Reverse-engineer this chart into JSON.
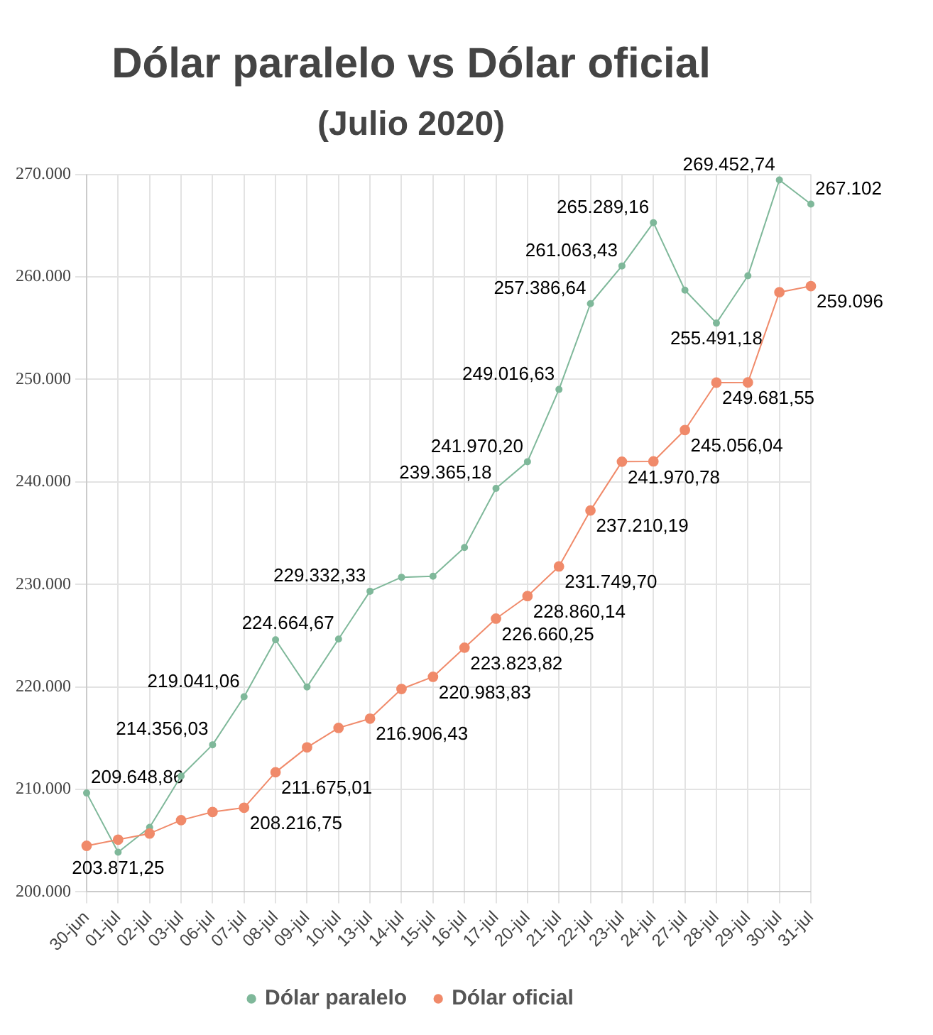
{
  "chart_data": {
    "type": "line",
    "title": "Dólar paralelo vs Dólar oficial",
    "subtitle": "(Julio 2020)",
    "categories": [
      "30-jun",
      "01-jul",
      "02-jul",
      "03-jul",
      "06-jul",
      "07-jul",
      "08-jul",
      "09-jul",
      "10-jul",
      "13-jul",
      "14-jul",
      "15-jul",
      "16-jul",
      "17-jul",
      "20-jul",
      "21-jul",
      "22-jul",
      "23-jul",
      "24-jul",
      "27-jul",
      "28-jul",
      "29-jul",
      "30-jul",
      "31-jul"
    ],
    "series": [
      {
        "name": "Dólar paralelo",
        "color": "#7fb89a",
        "values": [
          209648.86,
          203871.25,
          206300,
          211300,
          214356.03,
          219041.06,
          224600,
          220000,
          224664.67,
          229332.33,
          230700,
          230800,
          233600,
          239365.18,
          241970.2,
          249016.63,
          257386.64,
          261063.43,
          265289.16,
          258700,
          255491.18,
          260100,
          269452.74,
          267102
        ],
        "value_labels": [
          "209.648,86",
          "203.871,25",
          null,
          null,
          "214.356,03",
          "219.041,06",
          null,
          null,
          "224.664,67",
          "229.332,33",
          null,
          null,
          null,
          "239.365,18",
          "241.970,20",
          "249.016,63",
          "257.386,64",
          "261.063,43",
          "265.289,16",
          null,
          "255.491,18",
          null,
          "269.452,74",
          "267.102"
        ]
      },
      {
        "name": "Dólar oficial",
        "color": "#f08a6a",
        "values": [
          204500,
          205100,
          205700,
          207000,
          207800,
          208216.75,
          211675.01,
          214100,
          216000,
          216906.43,
          219800,
          220983.83,
          223823.82,
          226660.25,
          228860.14,
          231749.7,
          237210.19,
          241970.78,
          242000,
          245056.04,
          249681.55,
          249700,
          258500,
          259096
        ],
        "value_labels": [
          null,
          null,
          null,
          null,
          null,
          "208.216,75",
          "211.675,01",
          null,
          null,
          "216.906,43",
          null,
          "220.983,83",
          "223.823,82",
          "226.660,25",
          "228.860,14",
          "231.749,70",
          "237.210,19",
          "241.970,78",
          null,
          "245.056,04",
          "249.681,55",
          null,
          null,
          "259.096"
        ]
      }
    ],
    "ylim": [
      200000,
      270000
    ],
    "yticks": [
      {
        "value": 200000,
        "label": "200.000"
      },
      {
        "value": 210000,
        "label": "210.000"
      },
      {
        "value": 220000,
        "label": "220.000"
      },
      {
        "value": 230000,
        "label": "230.000"
      },
      {
        "value": 240000,
        "label": "240.000"
      },
      {
        "value": 250000,
        "label": "250.000"
      },
      {
        "value": 260000,
        "label": "260.000"
      },
      {
        "value": 270000,
        "label": "270.000"
      }
    ],
    "grid": true,
    "legend": "bottom",
    "marker": "circle",
    "line_style": "solid"
  }
}
